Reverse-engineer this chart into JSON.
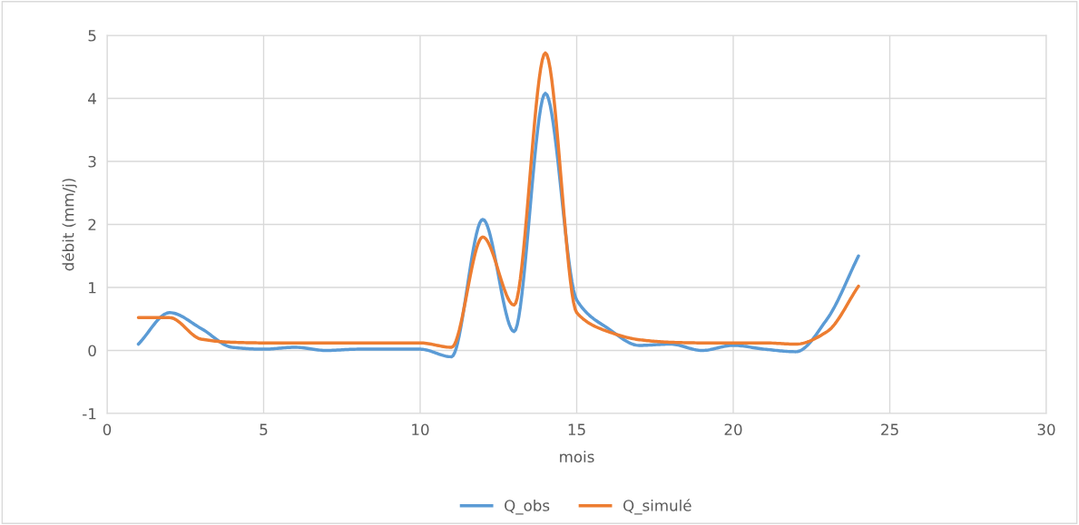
{
  "chart_data": {
    "type": "line",
    "xlabel": "mois",
    "ylabel": "débit (mm/j)",
    "x": [
      1,
      2,
      3,
      4,
      5,
      6,
      7,
      8,
      9,
      10,
      11,
      12,
      13,
      14,
      15,
      16,
      17,
      18,
      19,
      20,
      21,
      22,
      23,
      24
    ],
    "series": [
      {
        "name": "Q_obs",
        "color": "#5b9bd5",
        "values": [
          0.1,
          0.6,
          0.35,
          0.05,
          0.02,
          0.05,
          0.0,
          0.02,
          0.02,
          0.02,
          -0.1,
          2.08,
          0.3,
          4.08,
          0.8,
          0.35,
          0.08,
          0.1,
          0.0,
          0.08,
          0.02,
          -0.02,
          0.5,
          1.5
        ]
      },
      {
        "name": "Q_simulé",
        "color": "#ed7d31",
        "values": [
          0.52,
          0.52,
          0.18,
          0.13,
          0.12,
          0.12,
          0.12,
          0.12,
          0.12,
          0.12,
          0.05,
          1.8,
          0.72,
          4.72,
          0.6,
          0.3,
          0.17,
          0.13,
          0.12,
          0.12,
          0.12,
          0.1,
          0.3,
          1.02
        ]
      }
    ],
    "xlim": [
      0,
      30
    ],
    "xticks": [
      0,
      5,
      10,
      15,
      20,
      25,
      30
    ],
    "ylim": [
      -1,
      5
    ],
    "yticks": [
      -1,
      0,
      1,
      2,
      3,
      4,
      5
    ],
    "grid": true,
    "legend": "bottom",
    "marker": "none",
    "line_style": "solid"
  }
}
